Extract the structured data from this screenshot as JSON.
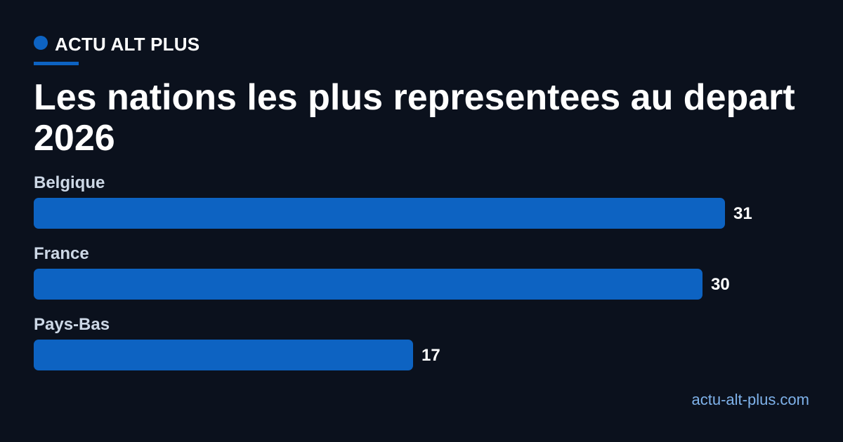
{
  "brand": {
    "name": "ACTU ALT PLUS",
    "color": "#0d63c2"
  },
  "chart_data": {
    "type": "bar",
    "orientation": "horizontal",
    "title": "Les nations les plus representees au depart 2026",
    "categories": [
      "Belgique",
      "France",
      "Pays-Bas"
    ],
    "values": [
      31,
      30,
      17
    ],
    "bar_color": "#0d63c2",
    "data_labels": true,
    "grid": false
  },
  "footer": {
    "site": "actu-alt-plus.com"
  }
}
